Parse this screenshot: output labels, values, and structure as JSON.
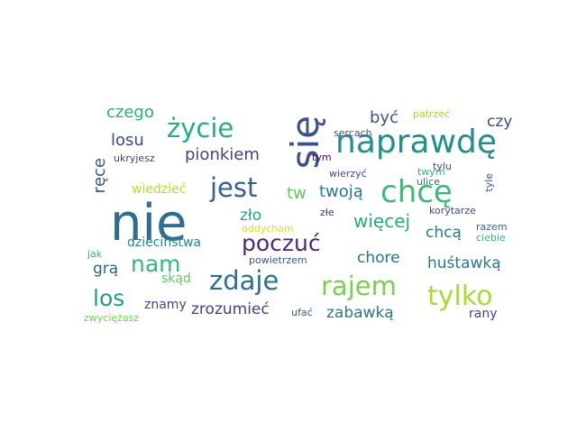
{
  "words": [
    {
      "text": "nie",
      "color": "#2f6e8e"
    },
    {
      "text": "się",
      "color": "#3b528b"
    },
    {
      "text": "naprawdę",
      "color": "#21908d"
    },
    {
      "text": "chcę",
      "color": "#3bbb75"
    },
    {
      "text": "jest",
      "color": "#34618d"
    },
    {
      "text": "życie",
      "color": "#27ad81"
    },
    {
      "text": "tylko",
      "color": "#a8db34"
    },
    {
      "text": "rajem",
      "color": "#7ad151"
    },
    {
      "text": "zdaje",
      "color": "#2c728e"
    },
    {
      "text": "poczuć",
      "color": "#472d7b"
    },
    {
      "text": "nam",
      "color": "#35b779"
    },
    {
      "text": "los",
      "color": "#1f9e89"
    },
    {
      "text": "więcej",
      "color": "#27ad81"
    },
    {
      "text": "czego",
      "color": "#27ad81"
    },
    {
      "text": "pionkiem",
      "color": "#414487"
    },
    {
      "text": "losu",
      "color": "#3e4a89"
    },
    {
      "text": "twoją",
      "color": "#2a788e"
    },
    {
      "text": "tw",
      "color": "#5ec962"
    },
    {
      "text": "być",
      "color": "#39558c"
    },
    {
      "text": "ręce",
      "color": "#3a538b"
    },
    {
      "text": "czy",
      "color": "#3e4c8a"
    },
    {
      "text": "zło",
      "color": "#22a884"
    },
    {
      "text": "chcą",
      "color": "#2a788e"
    },
    {
      "text": "chore",
      "color": "#2d708e"
    },
    {
      "text": "huśtawką",
      "color": "#2a788e"
    },
    {
      "text": "grą",
      "color": "#34608d"
    },
    {
      "text": "zrozumieć",
      "color": "#433e85"
    },
    {
      "text": "zabawką",
      "color": "#2a788e"
    },
    {
      "text": "wiedzieć",
      "color": "#b5de2b"
    },
    {
      "text": "dzieciństwa",
      "color": "#25858e"
    },
    {
      "text": "znamy",
      "color": "#3f4788"
    },
    {
      "text": "rany",
      "color": "#3f4889"
    },
    {
      "text": "skąd",
      "color": "#5ec962"
    },
    {
      "text": "patrzeć",
      "color": "#a5db36"
    },
    {
      "text": "sercach",
      "color": "#3b528b"
    },
    {
      "text": "ukryjesz",
      "color": "#443b84"
    },
    {
      "text": "tym",
      "color": "#440154"
    },
    {
      "text": "tylu",
      "color": "#3e4c8a"
    },
    {
      "text": "twym",
      "color": "#2fb47c"
    },
    {
      "text": "wierzyć",
      "color": "#3f4788"
    },
    {
      "text": "ulice",
      "color": "#31688e"
    },
    {
      "text": "tyle",
      "color": "#3b528b"
    },
    {
      "text": "złe",
      "color": "#46327e"
    },
    {
      "text": "korytarze",
      "color": "#3e4a89"
    },
    {
      "text": "oddycham",
      "color": "#d8e219"
    },
    {
      "text": "razem",
      "color": "#31688e"
    },
    {
      "text": "ciebie",
      "color": "#2fb47c"
    },
    {
      "text": "jak",
      "color": "#35b779"
    },
    {
      "text": "powietrzem",
      "color": "#3a548c"
    },
    {
      "text": "ufać",
      "color": "#38588c"
    },
    {
      "text": "zwyciężasz",
      "color": "#73d056"
    }
  ]
}
